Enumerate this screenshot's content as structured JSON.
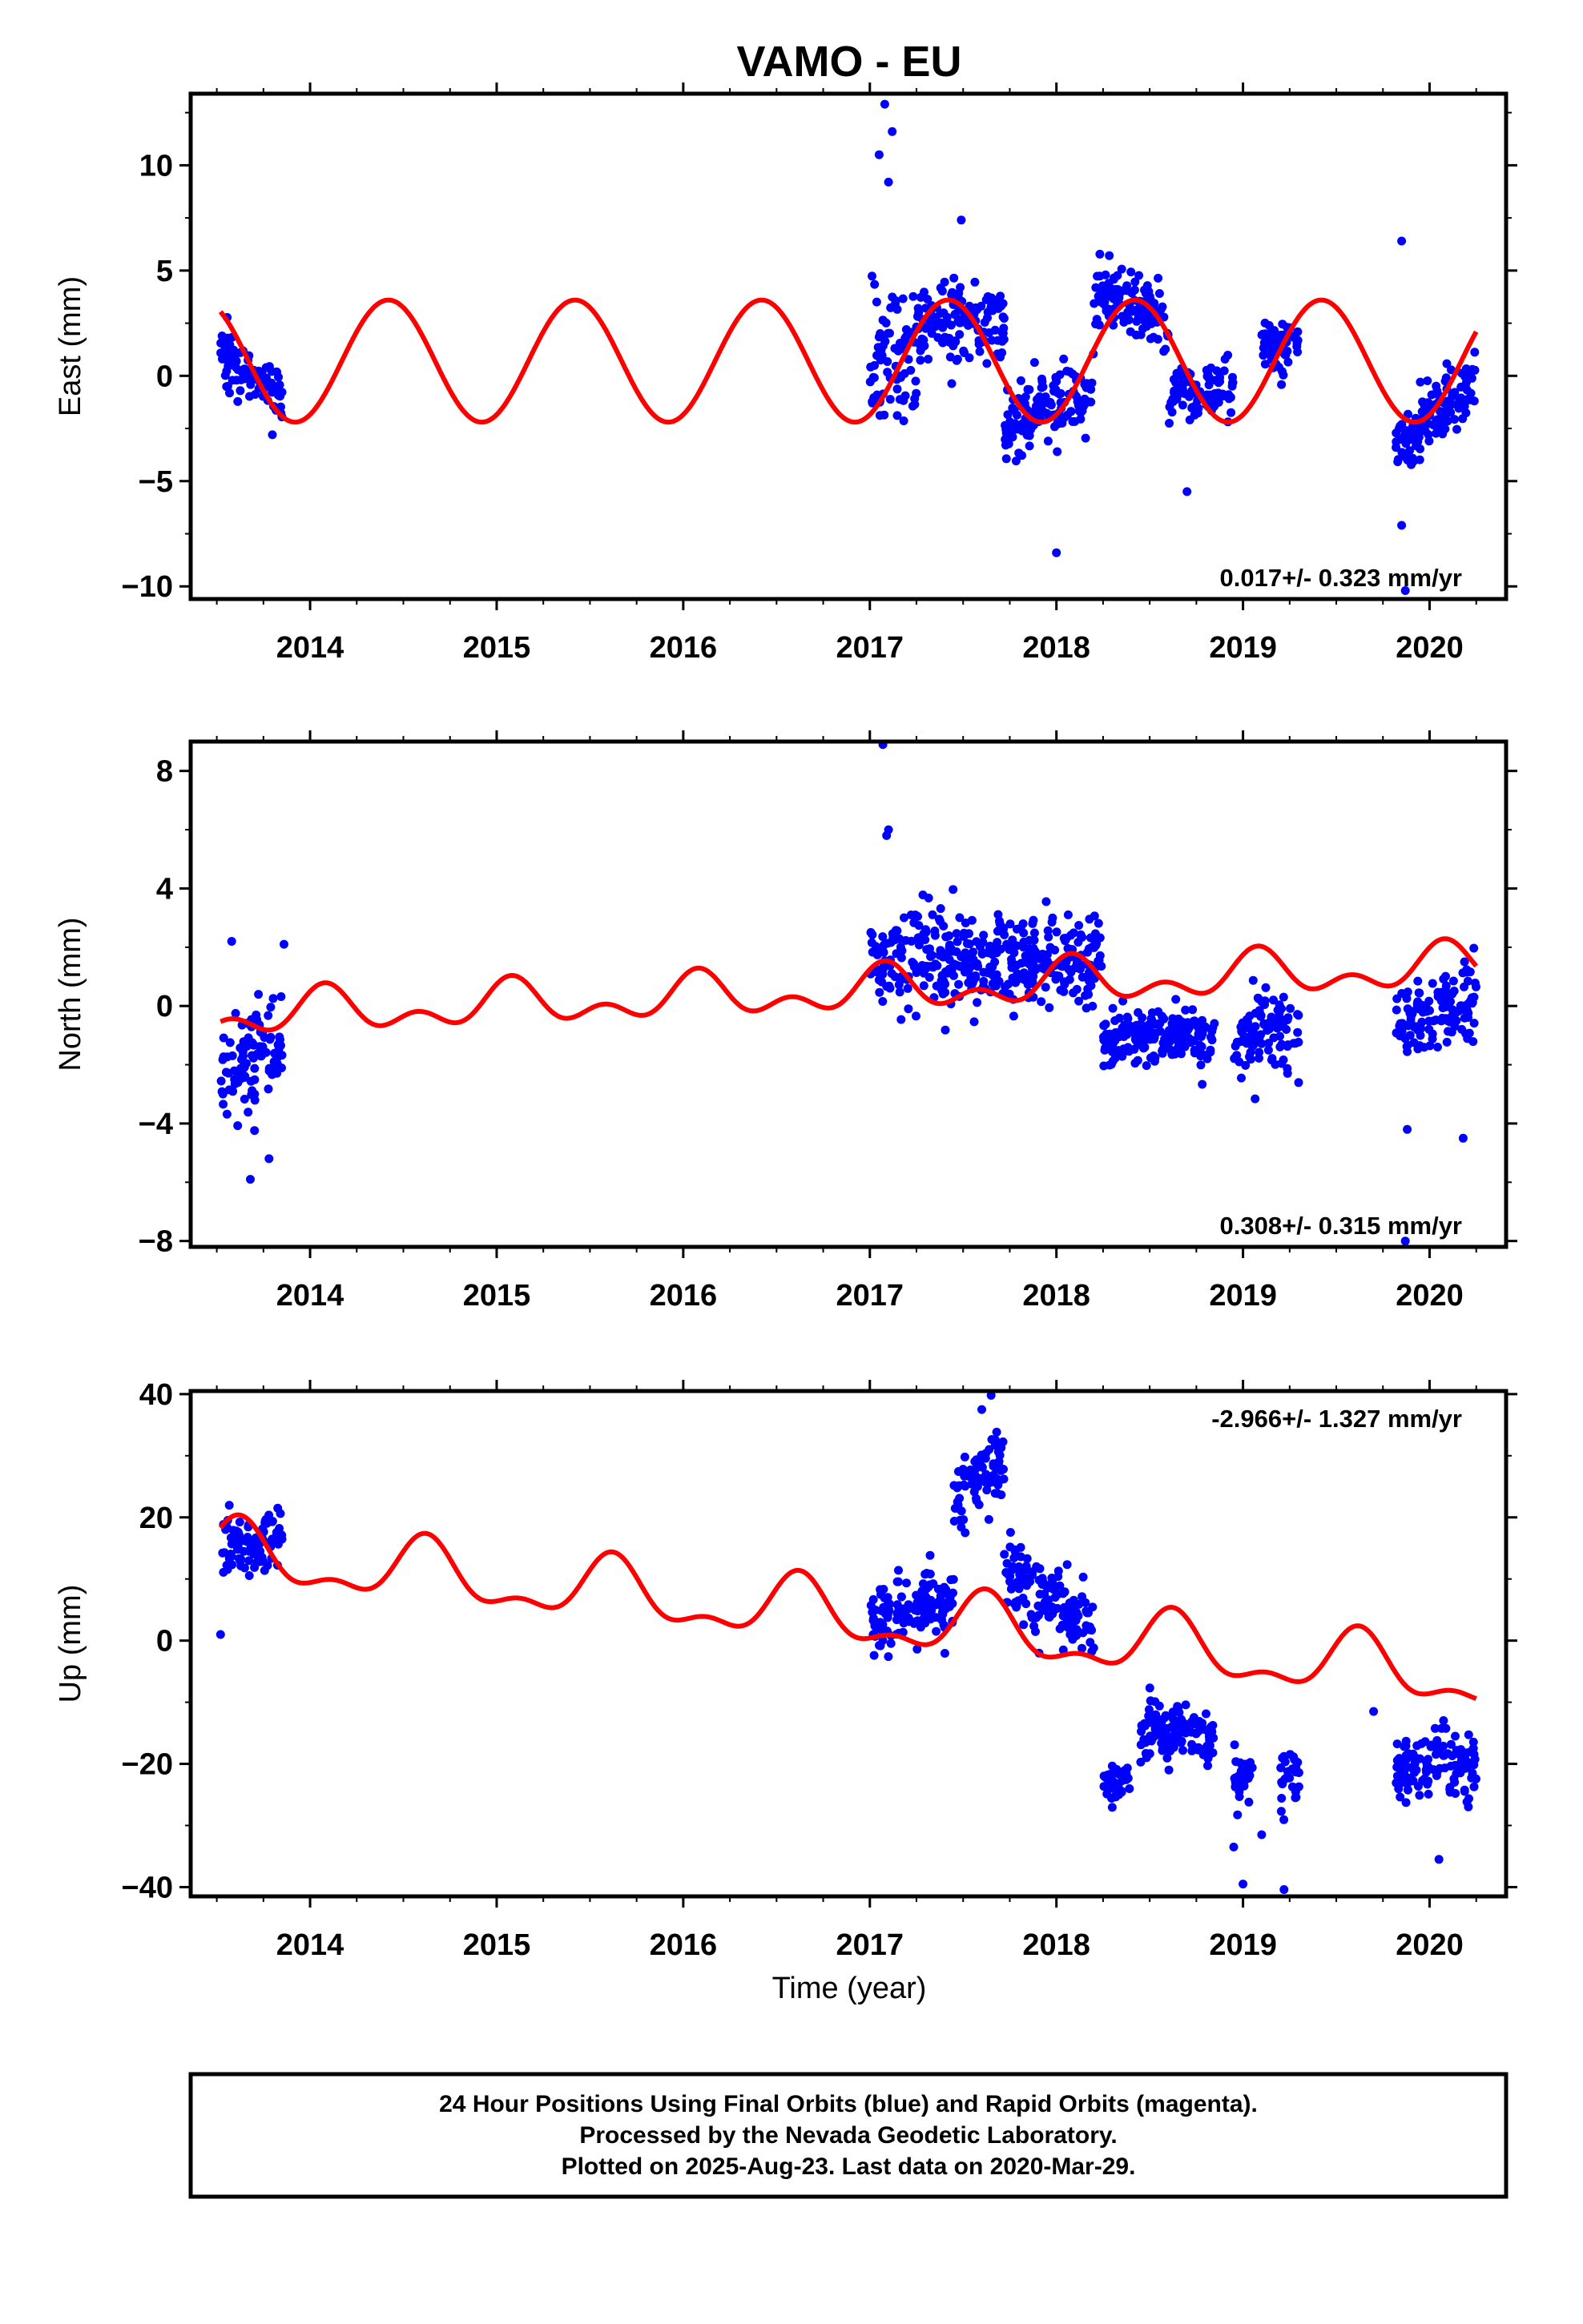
{
  "title": "VAMO - EU",
  "xlabel": "Time (year)",
  "footer": [
    "24 Hour Positions Using Final Orbits (blue) and Rapid Orbits (magenta).",
    "Processed by the Nevada Geodetic Laboratory.",
    "Plotted on 2025-Aug-23. Last data on 2020-Mar-29."
  ],
  "colors": {
    "final_orbits": "#0000ff",
    "model": "#ff0000",
    "axes": "#000000"
  },
  "chart_data": [
    {
      "type": "scatter",
      "ylabel": "East (mm)",
      "rate_label": "0.017+/- 0.323 mm/yr",
      "xlim": [
        2013.36,
        2020.41
      ],
      "ylim": [
        -10.6,
        13.4
      ],
      "xticks": [
        2014,
        2015,
        2016,
        2017,
        2018,
        2019,
        2020
      ],
      "yticks": [
        -10,
        -5,
        0,
        5,
        10
      ],
      "grid": false,
      "series": [
        {
          "kind": "points",
          "segments": [
            {
              "t": [
                2013.52,
                2013.85
              ],
              "center": 0.0,
              "trend": -2.0,
              "scatter": 1.1
            },
            {
              "t": [
                2017.0,
                2017.25
              ],
              "center": 1.0,
              "trend": 0.0,
              "scatter": 2.8
            },
            {
              "t": [
                2017.25,
                2017.72
              ],
              "center": 2.6,
              "trend": 0.0,
              "scatter": 1.6
            },
            {
              "t": [
                2017.72,
                2018.2
              ],
              "center": -1.5,
              "trend": 2.0,
              "scatter": 1.5
            },
            {
              "t": [
                2018.2,
                2018.6
              ],
              "center": 3.3,
              "trend": -1.5,
              "scatter": 1.4
            },
            {
              "t": [
                2018.6,
                2018.95
              ],
              "center": -0.8,
              "trend": 0.0,
              "scatter": 1.2
            },
            {
              "t": [
                2019.1,
                2019.3
              ],
              "center": 1.5,
              "trend": 0.0,
              "scatter": 1.2
            },
            {
              "t": [
                2019.82,
                2020.25
              ],
              "center": -1.8,
              "trend": 3.0,
              "scatter": 1.3
            }
          ],
          "outliers": [
            [
              2017.05,
              10.5
            ],
            [
              2017.08,
              12.9
            ],
            [
              2017.1,
              9.2
            ],
            [
              2017.12,
              11.6
            ],
            [
              2017.49,
              7.4
            ],
            [
              2018.0,
              -8.4
            ],
            [
              2019.85,
              6.4
            ],
            [
              2019.85,
              -7.1
            ],
            [
              2019.87,
              -10.2
            ],
            [
              2018.7,
              -5.5
            ]
          ]
        },
        {
          "kind": "model",
          "offset": 0.7,
          "linear": 0.0,
          "harmonics": [
            {
              "period": 1.0,
              "amp": 2.9,
              "peak": 2014.42
            }
          ]
        }
      ]
    },
    {
      "type": "scatter",
      "ylabel": "North (mm)",
      "rate_label": "0.308+/- 0.315 mm/yr",
      "xlim": [
        2013.36,
        2020.41
      ],
      "ylim": [
        -8.2,
        9.0
      ],
      "xticks": [
        2014,
        2015,
        2016,
        2017,
        2018,
        2019,
        2020
      ],
      "yticks": [
        -8,
        -4,
        0,
        4,
        8
      ],
      "grid": false,
      "series": [
        {
          "kind": "points",
          "segments": [
            {
              "t": [
                2013.52,
                2013.85
              ],
              "center": -1.8,
              "trend": 0.8,
              "scatter": 1.5
            },
            {
              "t": [
                2017.0,
                2018.25
              ],
              "center": 1.6,
              "trend": 0.0,
              "scatter": 1.6
            },
            {
              "t": [
                2018.25,
                2018.85
              ],
              "center": -1.1,
              "trend": 0.0,
              "scatter": 0.9
            },
            {
              "t": [
                2018.95,
                2019.3
              ],
              "center": -0.9,
              "trend": 0.0,
              "scatter": 1.3
            },
            {
              "t": [
                2019.82,
                2020.25
              ],
              "center": -0.2,
              "trend": 0.8,
              "scatter": 1.2
            }
          ],
          "outliers": [
            [
              2017.07,
              8.9
            ],
            [
              2017.1,
              6.0
            ],
            [
              2017.09,
              5.8
            ],
            [
              2013.68,
              -5.9
            ],
            [
              2013.78,
              -5.2
            ],
            [
              2019.87,
              -8.0
            ],
            [
              2019.88,
              -4.2
            ],
            [
              2020.18,
              -4.5
            ],
            [
              2013.58,
              2.2
            ],
            [
              2013.86,
              2.1
            ]
          ]
        },
        {
          "kind": "model",
          "offset": -0.35,
          "linear": 0.25,
          "harmonics": [
            {
              "period": 1.0,
              "amp": 0.55,
              "peak": 2014.08
            },
            {
              "period": 0.5,
              "amp": 0.45,
              "peak": 2014.08
            }
          ]
        }
      ]
    },
    {
      "type": "scatter",
      "ylabel": "Up (mm)",
      "rate_label": "-2.966+/- 1.327 mm/yr",
      "xlim": [
        2013.36,
        2020.41
      ],
      "ylim": [
        -41.5,
        40.5
      ],
      "xticks": [
        2014,
        2015,
        2016,
        2017,
        2018,
        2019,
        2020
      ],
      "yticks": [
        -40,
        -20,
        0,
        20,
        40
      ],
      "grid": false,
      "series": [
        {
          "kind": "points",
          "segments": [
            {
              "t": [
                2013.52,
                2013.85
              ],
              "center": 16.0,
              "trend": 0.0,
              "scatter": 4.5
            },
            {
              "t": [
                2017.0,
                2017.45
              ],
              "center": 5.0,
              "trend": 4.0,
              "scatter": 5.5
            },
            {
              "t": [
                2017.45,
                2017.72
              ],
              "center": 26.0,
              "trend": 6.0,
              "scatter": 5.0
            },
            {
              "t": [
                2017.72,
                2018.2
              ],
              "center": 7.0,
              "trend": -9.0,
              "scatter": 5.5
            },
            {
              "t": [
                2018.25,
                2018.4
              ],
              "center": -23.0,
              "trend": 0.0,
              "scatter": 3.0
            },
            {
              "t": [
                2018.45,
                2018.85
              ],
              "center": -15.0,
              "trend": -2.0,
              "scatter": 4.0
            },
            {
              "t": [
                2018.95,
                2019.05
              ],
              "center": -22.0,
              "trend": 0.0,
              "scatter": 4.0
            },
            {
              "t": [
                2019.2,
                2019.3
              ],
              "center": -23.0,
              "trend": 0.0,
              "scatter": 5.0
            },
            {
              "t": [
                2019.82,
                2020.25
              ],
              "center": -20.0,
              "trend": 0.0,
              "scatter": 5.0
            }
          ],
          "outliers": [
            [
              2017.65,
              39.8
            ],
            [
              2017.6,
              37.5
            ],
            [
              2019.0,
              -39.5
            ],
            [
              2019.22,
              -40.4
            ],
            [
              2018.95,
              -33.5
            ],
            [
              2019.1,
              -31.5
            ],
            [
              2020.05,
              -35.5
            ],
            [
              2019.7,
              -11.5
            ],
            [
              2013.52,
              1.0
            ]
          ]
        },
        {
          "kind": "model",
          "offset": 14.0,
          "linear": -3.0,
          "harmonics": [
            {
              "period": 1.0,
              "amp": 4.5,
              "peak": 2014.62
            },
            {
              "period": 0.5,
              "amp": 2.2,
              "peak": 2014.62
            }
          ]
        }
      ]
    }
  ]
}
